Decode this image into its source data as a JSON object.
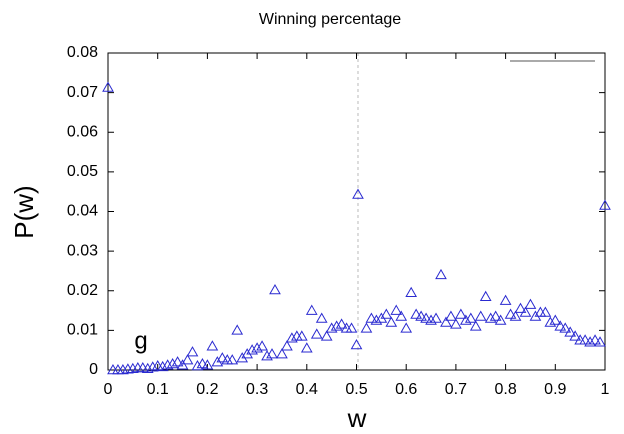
{
  "chart_data": {
    "type": "scatter",
    "title": "Winning percentage",
    "x_label": "w",
    "y_label": "P(w)",
    "annotation": "g",
    "color": "#2a2ad0",
    "x": [
      0,
      0.01,
      0.02,
      0.03,
      0.04,
      0.05,
      0.06,
      0.07,
      0.08,
      0.09,
      0.1,
      0.11,
      0.12,
      0.13,
      0.14,
      0.15,
      0.16,
      0.17,
      0.18,
      0.19,
      0.2,
      0.21,
      0.22,
      0.23,
      0.24,
      0.25,
      0.26,
      0.27,
      0.28,
      0.29,
      0.3,
      0.31,
      0.32,
      0.33,
      0.336,
      0.35,
      0.36,
      0.37,
      0.38,
      0.39,
      0.4,
      0.41,
      0.42,
      0.43,
      0.44,
      0.45,
      0.46,
      0.47,
      0.48,
      0.49,
      0.5,
      0.503,
      0.52,
      0.53,
      0.54,
      0.55,
      0.56,
      0.57,
      0.58,
      0.59,
      0.6,
      0.61,
      0.62,
      0.63,
      0.64,
      0.65,
      0.66,
      0.67,
      0.68,
      0.69,
      0.7,
      0.71,
      0.72,
      0.73,
      0.74,
      0.75,
      0.76,
      0.77,
      0.78,
      0.79,
      0.8,
      0.81,
      0.82,
      0.83,
      0.84,
      0.85,
      0.86,
      0.87,
      0.88,
      0.89,
      0.9,
      0.91,
      0.92,
      0.93,
      0.94,
      0.95,
      0.96,
      0.97,
      0.98,
      0.99,
      1
    ],
    "values": [
      0.0713,
      0,
      0,
      0,
      0.0002,
      0.0003,
      0.0005,
      0.0005,
      0.0003,
      0.0007,
      0.001,
      0.0008,
      0.0012,
      0.0015,
      0.002,
      0.0012,
      0.0025,
      0.0045,
      0.001,
      0.0015,
      0.0012,
      0.006,
      0.002,
      0.003,
      0.0025,
      0.0025,
      0.01,
      0.003,
      0.004,
      0.005,
      0.0055,
      0.006,
      0.0035,
      0.004,
      0.0202,
      0.004,
      0.006,
      0.008,
      0.0085,
      0.0085,
      0.0055,
      0.015,
      0.009,
      0.013,
      0.0085,
      0.0105,
      0.011,
      0.0115,
      0.0105,
      0.0105,
      0.0063,
      0.0443,
      0.0105,
      0.013,
      0.0125,
      0.013,
      0.014,
      0.012,
      0.015,
      0.0135,
      0.0105,
      0.0195,
      0.014,
      0.0135,
      0.013,
      0.0125,
      0.013,
      0.024,
      0.012,
      0.0135,
      0.0115,
      0.014,
      0.0125,
      0.013,
      0.011,
      0.0135,
      0.0185,
      0.013,
      0.0135,
      0.0125,
      0.0175,
      0.014,
      0.0135,
      0.0155,
      0.0145,
      0.0165,
      0.0135,
      0.0145,
      0.0145,
      0.012,
      0.0125,
      0.011,
      0.0105,
      0.0095,
      0.0085,
      0.0075,
      0.0075,
      0.007,
      0.0075,
      0.007,
      0.0415
    ],
    "xlim": [
      0,
      1
    ],
    "xticks": [
      0,
      0.1,
      0.2,
      0.3,
      0.4,
      0.5,
      0.6,
      0.7,
      0.8,
      0.9,
      1
    ],
    "ylim": [
      0,
      0.08
    ],
    "yticks": [
      0,
      0.01,
      0.02,
      0.03,
      0.04,
      0.05,
      0.06,
      0.07,
      0.08
    ]
  }
}
